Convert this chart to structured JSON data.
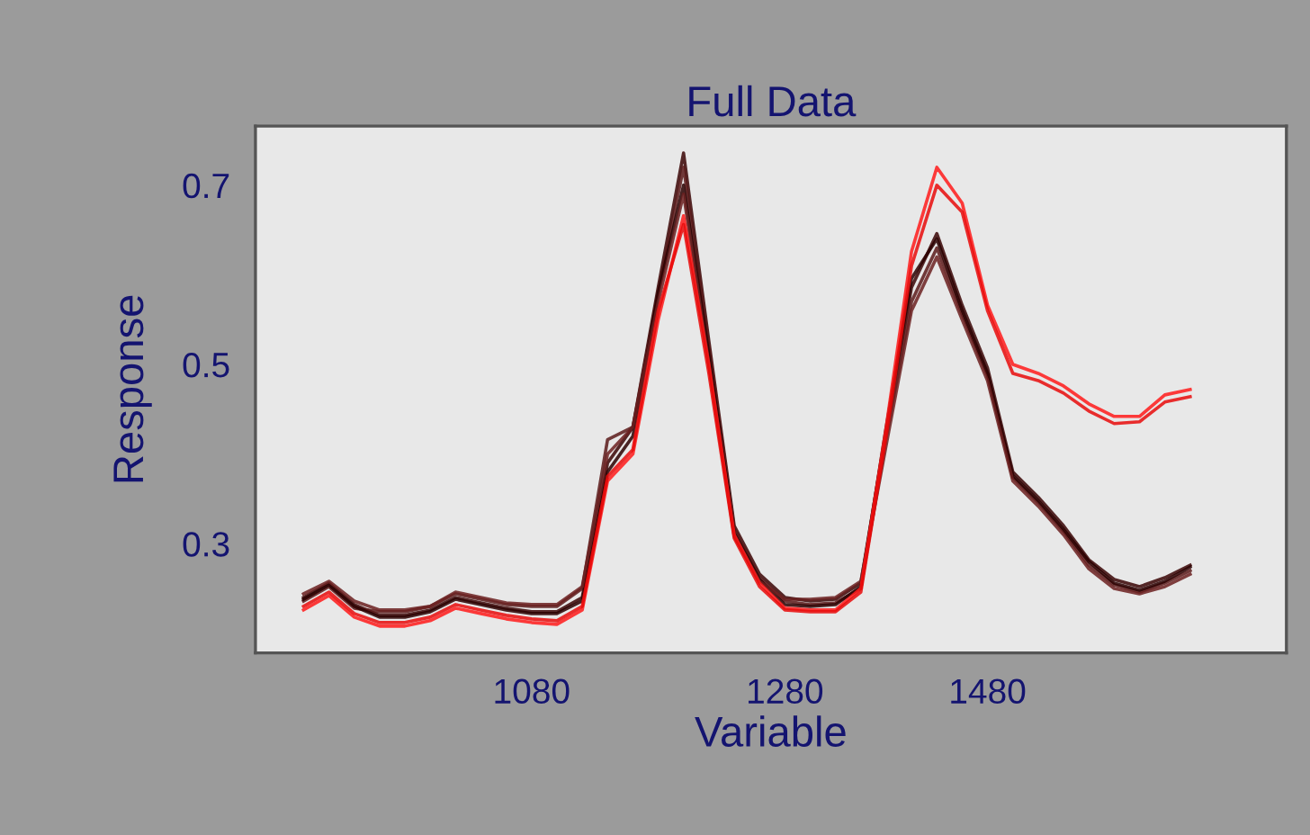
{
  "chart_data": {
    "type": "line",
    "title": "Full Data",
    "xlabel": "Variable",
    "ylabel": "Response",
    "categories": [
      null,
      null,
      null,
      null,
      null,
      null,
      null,
      null,
      null,
      "1080",
      null,
      null,
      null,
      null,
      null,
      null,
      null,
      null,
      null,
      "1280",
      null,
      null,
      null,
      null,
      null,
      null,
      null,
      "1480",
      null,
      null,
      null,
      null,
      null,
      null,
      null,
      null
    ],
    "ylim": [
      0.178,
      0.766
    ],
    "yticks": [
      0.3,
      0.5,
      0.7
    ],
    "grid": false,
    "marker": "none",
    "line_style": "solid",
    "series": [
      {
        "color": "#3a0505",
        "values": [
          0.24,
          0.256,
          0.232,
          0.22,
          0.22,
          0.226,
          0.24,
          0.234,
          0.228,
          0.224,
          0.224,
          0.24,
          0.39,
          0.43,
          0.586,
          0.736,
          0.526,
          0.32,
          0.266,
          0.24,
          0.236,
          0.238,
          0.256,
          0.426,
          0.586,
          0.646,
          0.566,
          0.496,
          0.38,
          0.352,
          0.32,
          0.282,
          0.26,
          0.252,
          0.262,
          0.276
        ]
      },
      {
        "color": "#5a1a1a",
        "values": [
          0.236,
          0.252,
          0.228,
          0.224,
          0.224,
          0.23,
          0.244,
          0.238,
          0.232,
          0.23,
          0.23,
          0.25,
          0.416,
          0.43,
          0.58,
          0.72,
          0.52,
          0.316,
          0.262,
          0.236,
          0.232,
          0.234,
          0.25,
          0.42,
          0.57,
          0.63,
          0.556,
          0.488,
          0.374,
          0.346,
          0.314,
          0.276,
          0.254,
          0.246,
          0.256,
          0.27
        ]
      },
      {
        "color": "#2a0000",
        "values": [
          0.238,
          0.254,
          0.23,
          0.218,
          0.218,
          0.224,
          0.238,
          0.232,
          0.226,
          0.222,
          0.222,
          0.236,
          0.38,
          0.42,
          0.58,
          0.7,
          0.51,
          0.312,
          0.26,
          0.232,
          0.23,
          0.232,
          0.252,
          0.43,
          0.596,
          0.64,
          0.56,
          0.49,
          0.376,
          0.348,
          0.316,
          0.28,
          0.256,
          0.248,
          0.258,
          0.274
        ]
      },
      {
        "color": "#6b2020",
        "values": [
          0.244,
          0.258,
          0.236,
          0.226,
          0.226,
          0.23,
          0.246,
          0.24,
          0.234,
          0.232,
          0.232,
          0.252,
          0.4,
          0.43,
          0.57,
          0.69,
          0.5,
          0.308,
          0.258,
          0.238,
          0.238,
          0.24,
          0.258,
          0.41,
          0.56,
          0.62,
          0.55,
          0.482,
          0.37,
          0.342,
          0.31,
          0.272,
          0.25,
          0.244,
          0.252,
          0.266
        ]
      },
      {
        "color": "#ff1a1a",
        "values": [
          0.226,
          0.242,
          0.218,
          0.208,
          0.208,
          0.214,
          0.228,
          0.222,
          0.216,
          0.212,
          0.21,
          0.226,
          0.37,
          0.4,
          0.55,
          0.666,
          0.5,
          0.31,
          0.256,
          0.228,
          0.226,
          0.226,
          0.25,
          0.43,
          0.626,
          0.72,
          0.68,
          0.566,
          0.5,
          0.49,
          0.476,
          0.456,
          0.442,
          0.442,
          0.466,
          0.472
        ]
      },
      {
        "color": "#e80a0a",
        "values": [
          0.23,
          0.246,
          0.222,
          0.212,
          0.212,
          0.218,
          0.232,
          0.226,
          0.22,
          0.216,
          0.214,
          0.23,
          0.375,
          0.405,
          0.56,
          0.656,
          0.49,
          0.306,
          0.252,
          0.226,
          0.224,
          0.224,
          0.246,
          0.42,
          0.61,
          0.7,
          0.67,
          0.56,
          0.49,
          0.482,
          0.468,
          0.448,
          0.434,
          0.436,
          0.458,
          0.464
        ]
      }
    ]
  }
}
